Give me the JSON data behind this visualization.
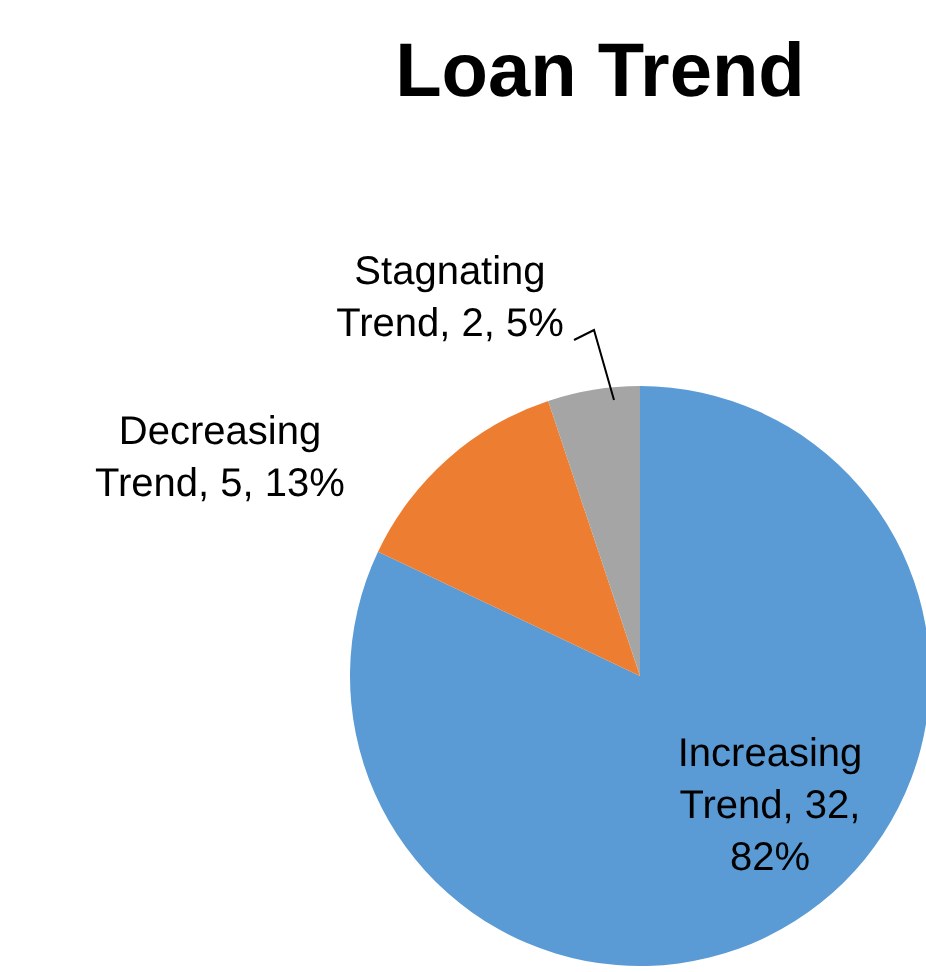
{
  "chart_data": {
    "type": "pie",
    "title": "Loan Trend",
    "categories": [
      "Increasing Trend",
      "Decreasing Trend",
      "Stagnating Trend"
    ],
    "values": [
      32,
      5,
      2
    ],
    "colors": [
      "#5b9bd5",
      "#ed7d31",
      "#a5a5a5"
    ],
    "value_labels": [
      "32, 82%",
      "5, 13%",
      "2, 5%"
    ],
    "legend": false
  }
}
